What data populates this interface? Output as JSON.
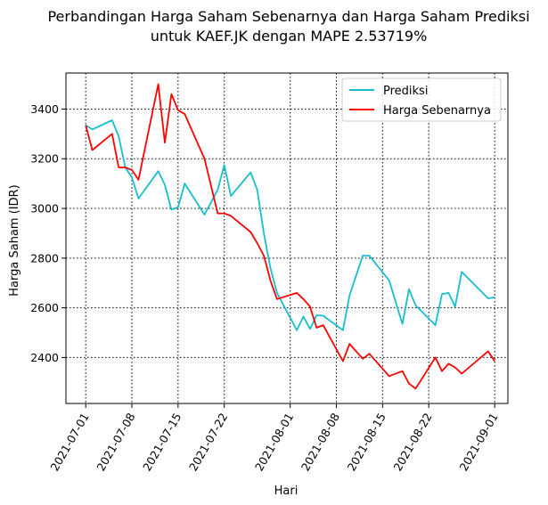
{
  "chart_data": {
    "type": "line",
    "title_lines": [
      "Perbandingan Harga Saham Sebenarnya dan Harga Saham Prediksi",
      "untuk KAEF.JK dengan MAPE 2.53719%"
    ],
    "xlabel": "Hari",
    "ylabel": "Harga Saham (IDR)",
    "x_tick_labels": [
      "2021-07-01",
      "2021-07-08",
      "2021-07-15",
      "2021-07-22",
      "2021-08-01",
      "2021-08-08",
      "2021-08-15",
      "2021-08-22",
      "2021-09-01"
    ],
    "y_tick_labels": [
      "2400",
      "2600",
      "2800",
      "3000",
      "3200",
      "3400"
    ],
    "x_ticks": [
      "2021-07-01",
      "2021-07-08",
      "2021-07-15",
      "2021-07-22",
      "2021-08-01",
      "2021-08-08",
      "2021-08-15",
      "2021-08-22",
      "2021-09-01"
    ],
    "y_ticks": [
      2400,
      2600,
      2800,
      3000,
      3200,
      3400
    ],
    "xlim": [
      "2021-06-28",
      "2021-09-03"
    ],
    "ylim": [
      2215,
      3545
    ],
    "grid": true,
    "grid_style": "dotted",
    "legend_position": "top-right",
    "series": [
      {
        "name": "Prediksi",
        "color": "#17becf",
        "x": [
          "2021-07-01",
          "2021-07-02",
          "2021-07-05",
          "2021-07-06",
          "2021-07-07",
          "2021-07-08",
          "2021-07-09",
          "2021-07-12",
          "2021-07-13",
          "2021-07-14",
          "2021-07-15",
          "2021-07-16",
          "2021-07-19",
          "2021-07-21",
          "2021-07-22",
          "2021-07-23",
          "2021-07-26",
          "2021-07-27",
          "2021-07-28",
          "2021-07-29",
          "2021-07-30",
          "2021-08-02",
          "2021-08-03",
          "2021-08-04",
          "2021-08-05",
          "2021-08-06",
          "2021-08-09",
          "2021-08-10",
          "2021-08-12",
          "2021-08-13",
          "2021-08-16",
          "2021-08-18",
          "2021-08-19",
          "2021-08-20",
          "2021-08-23",
          "2021-08-24",
          "2021-08-25",
          "2021-08-26",
          "2021-08-27",
          "2021-08-31",
          "2021-09-01"
        ],
        "values": [
          3335,
          3318,
          3355,
          3290,
          3165,
          3125,
          3040,
          3150,
          3095,
          2995,
          3005,
          3100,
          2975,
          3075,
          3175,
          3050,
          3145,
          3075,
          2900,
          2760,
          2660,
          2510,
          2565,
          2515,
          2570,
          2568,
          2510,
          2650,
          2810,
          2810,
          2710,
          2535,
          2675,
          2610,
          2530,
          2655,
          2660,
          2605,
          2745,
          2638,
          2642
        ]
      },
      {
        "name": "Harga Sebenarnya",
        "color": "#ff0000",
        "x": [
          "2021-07-01",
          "2021-07-02",
          "2021-07-05",
          "2021-07-06",
          "2021-07-07",
          "2021-07-08",
          "2021-07-09",
          "2021-07-12",
          "2021-07-13",
          "2021-07-14",
          "2021-07-15",
          "2021-07-16",
          "2021-07-19",
          "2021-07-21",
          "2021-07-22",
          "2021-07-23",
          "2021-07-26",
          "2021-07-27",
          "2021-07-28",
          "2021-07-29",
          "2021-07-30",
          "2021-08-02",
          "2021-08-03",
          "2021-08-04",
          "2021-08-05",
          "2021-08-06",
          "2021-08-09",
          "2021-08-10",
          "2021-08-12",
          "2021-08-13",
          "2021-08-16",
          "2021-08-18",
          "2021-08-19",
          "2021-08-20",
          "2021-08-23",
          "2021-08-24",
          "2021-08-25",
          "2021-08-26",
          "2021-08-27",
          "2021-08-31",
          "2021-09-01"
        ],
        "values": [
          3335,
          3235,
          3300,
          3165,
          3165,
          3155,
          3115,
          3500,
          3265,
          3460,
          3395,
          3380,
          3200,
          2980,
          2980,
          2970,
          2905,
          2860,
          2810,
          2710,
          2635,
          2660,
          2635,
          2605,
          2520,
          2530,
          2385,
          2455,
          2395,
          2415,
          2325,
          2345,
          2295,
          2275,
          2400,
          2345,
          2375,
          2360,
          2335,
          2425,
          2385
        ]
      }
    ]
  }
}
